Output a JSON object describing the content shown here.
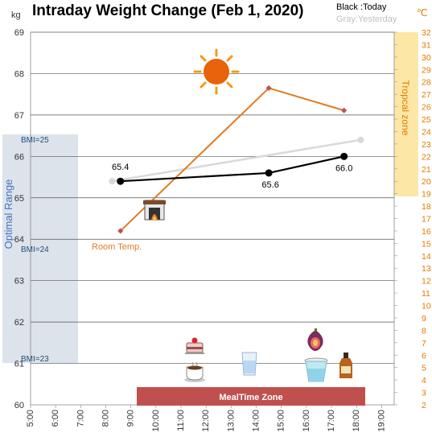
{
  "chart_data": {
    "type": "line",
    "title": "Intraday Weight Change (Feb 1, 2020)",
    "ylabel": "kg",
    "y2label": "℃",
    "ylim": [
      60,
      69
    ],
    "y2lim": [
      2,
      32
    ],
    "x_ticks": [
      "5:00",
      "6:00",
      "7:00",
      "8:00",
      "9:00",
      "10:00",
      "11:00",
      "12:00",
      "13:00",
      "14:00",
      "15:00",
      "16:00",
      "17:00",
      "18:00",
      "19:00"
    ],
    "x_tick_hours": [
      5,
      6,
      7,
      8,
      9,
      10,
      11,
      12,
      13,
      14,
      15,
      16,
      17,
      18,
      19
    ],
    "grid": "horizontal",
    "legend": {
      "today": "Black :Today",
      "yesterday": "Gray:Yesterday"
    },
    "series": [
      {
        "name": "Today",
        "color": "#000000",
        "points": [
          {
            "x": "8:35",
            "y": 65.4
          },
          {
            "x": "14:30",
            "y": 65.6
          },
          {
            "x": "17:30",
            "y": 66.0
          }
        ],
        "labels": [
          "65.4",
          "65.6",
          "66.0"
        ]
      },
      {
        "name": "Yesterday",
        "color": "#d9d9d9",
        "points": [
          {
            "x": "8:15",
            "y": 65.4
          },
          {
            "x": "18:10",
            "y": 66.4
          }
        ]
      },
      {
        "name": "Room Temp.",
        "color": "#e07b24",
        "axis": "right",
        "points": [
          {
            "x": "8:35",
            "y": 16.0
          },
          {
            "x": "14:30",
            "y": 27.5
          },
          {
            "x": "17:30",
            "y": 25.7
          }
        ],
        "label": "Room Temp."
      }
    ],
    "bands": {
      "optimal": {
        "label": "Optimal Range",
        "from": 61,
        "to": 66.5,
        "color": "#dde3ea",
        "bmi_labels": [
          {
            "text": "BMI=25",
            "y": 66.4
          },
          {
            "text": "BMI=24",
            "y": 63.8
          },
          {
            "text": "BMI=23",
            "y": 61.1
          }
        ]
      },
      "tropical": {
        "label": "Tropcal zone",
        "from": 19,
        "to": 32,
        "color": "#fde7a6"
      },
      "meal": {
        "label": "MealTime Zone",
        "from": "9:00",
        "to": "17:30",
        "color": "#c0504d"
      }
    },
    "icons": [
      {
        "name": "sun-icon"
      },
      {
        "name": "fireplace-icon"
      },
      {
        "name": "cake-icon"
      },
      {
        "name": "coffee-icon"
      },
      {
        "name": "water-glass-icon"
      },
      {
        "name": "fig-icon"
      },
      {
        "name": "smoothie-icon"
      },
      {
        "name": "liquor-bottle-icon"
      }
    ]
  }
}
